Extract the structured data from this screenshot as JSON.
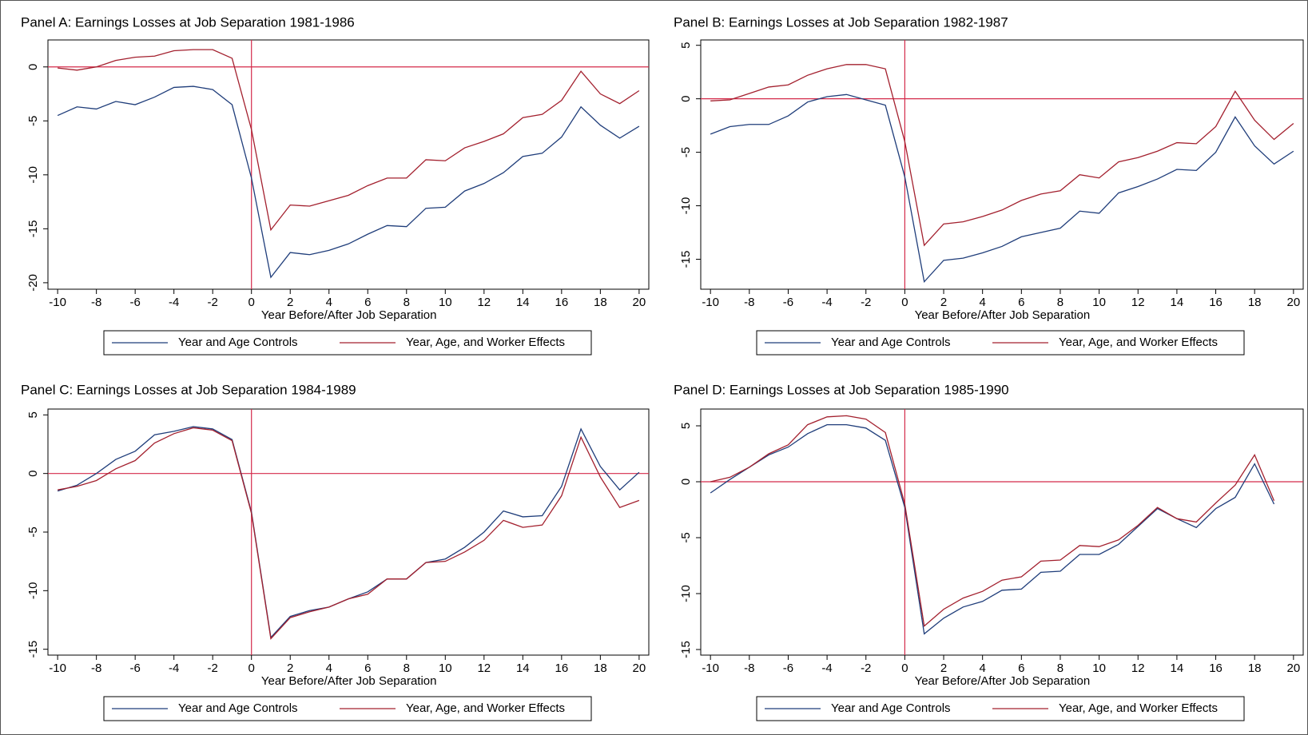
{
  "chart_data": [
    {
      "type": "line",
      "title": "Panel A: Earnings Losses at Job Separation 1981-1986",
      "x_label": "Year Before/After Job Separation",
      "x": [
        -10,
        -9,
        -8,
        -7,
        -6,
        -5,
        -4,
        -3,
        -2,
        -1,
        0,
        1,
        2,
        3,
        4,
        5,
        6,
        7,
        8,
        9,
        10,
        11,
        12,
        13,
        14,
        15,
        16,
        17,
        18,
        19,
        20
      ],
      "series": [
        {
          "name": "Year and Age Controls",
          "color": "#1f3d7a",
          "values": [
            -4.5,
            -3.7,
            -3.9,
            -3.2,
            -3.5,
            -2.8,
            -1.9,
            -1.8,
            -2.1,
            -3.5,
            -10.3,
            -19.5,
            -17.2,
            -17.4,
            -17.0,
            -16.4,
            -15.5,
            -14.7,
            -14.8,
            -13.1,
            -13.0,
            -11.5,
            -10.8,
            -9.8,
            -8.3,
            -8.0,
            -6.5,
            -3.7,
            -5.4,
            -6.6,
            -5.5
          ]
        },
        {
          "name": "Year, Age, and Worker Effects",
          "color": "#a3202e",
          "values": [
            -0.1,
            -0.3,
            0.0,
            0.6,
            0.9,
            1.0,
            1.5,
            1.6,
            1.6,
            0.8,
            -5.8,
            -15.1,
            -12.8,
            -12.9,
            -12.4,
            -11.9,
            -11.0,
            -10.3,
            -10.3,
            -8.6,
            -8.7,
            -7.5,
            -6.9,
            -6.2,
            -4.7,
            -4.4,
            -3.1,
            -0.4,
            -2.5,
            -3.4,
            -2.2
          ]
        }
      ],
      "xlim": [
        -10.5,
        20.5
      ],
      "xticks": [
        -10,
        -8,
        -6,
        -4,
        -2,
        0,
        2,
        4,
        6,
        8,
        10,
        12,
        14,
        16,
        18,
        20
      ],
      "ylim": [
        -20.6,
        2.5
      ],
      "yticks": [
        -20,
        -15,
        -10,
        -5,
        0
      ],
      "hline": 0,
      "vline": 0,
      "ref_color": "#d42a4a"
    },
    {
      "type": "line",
      "title": "Panel B: Earnings Losses at Job Separation 1982-1987",
      "x_label": "Year Before/After Job Separation",
      "x": [
        -10,
        -9,
        -8,
        -7,
        -6,
        -5,
        -4,
        -3,
        -2,
        -1,
        0,
        1,
        2,
        3,
        4,
        5,
        6,
        7,
        8,
        9,
        10,
        11,
        12,
        13,
        14,
        15,
        16,
        17,
        18,
        19,
        20
      ],
      "series": [
        {
          "name": "Year and Age Controls",
          "color": "#1f3d7a",
          "values": [
            -3.3,
            -2.6,
            -2.4,
            -2.4,
            -1.6,
            -0.3,
            0.2,
            0.4,
            -0.1,
            -0.6,
            -7.3,
            -17.1,
            -15.1,
            -14.9,
            -14.4,
            -13.8,
            -12.9,
            -12.5,
            -12.1,
            -10.5,
            -10.7,
            -8.8,
            -8.2,
            -7.5,
            -6.6,
            -6.7,
            -5.0,
            -1.7,
            -4.4,
            -6.1,
            -4.9
          ]
        },
        {
          "name": "Year, Age, and Worker Effects",
          "color": "#a3202e",
          "values": [
            -0.2,
            -0.1,
            0.5,
            1.1,
            1.3,
            2.2,
            2.8,
            3.2,
            3.2,
            2.8,
            -4.0,
            -13.7,
            -11.7,
            -11.5,
            -11.0,
            -10.4,
            -9.5,
            -8.9,
            -8.6,
            -7.1,
            -7.4,
            -5.9,
            -5.5,
            -4.9,
            -4.1,
            -4.2,
            -2.6,
            0.7,
            -2.0,
            -3.8,
            -2.3
          ]
        }
      ],
      "xlim": [
        -10.5,
        20.5
      ],
      "xticks": [
        -10,
        -8,
        -6,
        -4,
        -2,
        0,
        2,
        4,
        6,
        8,
        10,
        12,
        14,
        16,
        18,
        20
      ],
      "ylim": [
        -17.8,
        5.5
      ],
      "yticks": [
        -15,
        -10,
        -5,
        0,
        5
      ],
      "hline": 0,
      "vline": 0,
      "ref_color": "#d42a4a"
    },
    {
      "type": "line",
      "title": "Panel C: Earnings Losses at Job Separation 1984-1989",
      "x_label": "Year Before/After Job Separation",
      "x": [
        -10,
        -9,
        -8,
        -7,
        -6,
        -5,
        -4,
        -3,
        -2,
        -1,
        0,
        1,
        2,
        3,
        4,
        5,
        6,
        7,
        8,
        9,
        10,
        11,
        12,
        13,
        14,
        15,
        16,
        17,
        18,
        19,
        20
      ],
      "series": [
        {
          "name": "Year and Age Controls",
          "color": "#1f3d7a",
          "values": [
            -1.5,
            -1.0,
            0.0,
            1.2,
            1.9,
            3.3,
            3.6,
            4.0,
            3.8,
            2.9,
            -3.3,
            -14.0,
            -12.2,
            -11.7,
            -11.4,
            -10.7,
            -10.1,
            -9.0,
            -9.0,
            -7.6,
            -7.3,
            -6.3,
            -5.0,
            -3.2,
            -3.7,
            -3.6,
            -1.1,
            3.8,
            0.6,
            -1.4,
            0.1
          ]
        },
        {
          "name": "Year, Age, and Worker Effects",
          "color": "#a3202e",
          "values": [
            -1.4,
            -1.1,
            -0.6,
            0.4,
            1.1,
            2.6,
            3.4,
            3.9,
            3.7,
            2.8,
            -3.4,
            -14.1,
            -12.3,
            -11.8,
            -11.4,
            -10.7,
            -10.3,
            -9.0,
            -9.0,
            -7.6,
            -7.5,
            -6.7,
            -5.7,
            -4.0,
            -4.6,
            -4.4,
            -1.9,
            3.1,
            -0.3,
            -2.9,
            -2.3
          ]
        }
      ],
      "xlim": [
        -10.5,
        20.5
      ],
      "xticks": [
        -10,
        -8,
        -6,
        -4,
        -2,
        0,
        2,
        4,
        6,
        8,
        10,
        12,
        14,
        16,
        18,
        20
      ],
      "ylim": [
        -15.5,
        5.5
      ],
      "yticks": [
        -15,
        -10,
        -5,
        0,
        5
      ],
      "hline": 0,
      "vline": 0,
      "ref_color": "#d42a4a"
    },
    {
      "type": "line",
      "title": "Panel D: Earnings Losses at Job Separation 1985-1990",
      "x_label": "Year Before/After Job Separation",
      "x": [
        -10,
        -9,
        -8,
        -7,
        -6,
        -5,
        -4,
        -3,
        -2,
        -1,
        0,
        1,
        2,
        3,
        4,
        5,
        6,
        7,
        8,
        9,
        10,
        11,
        12,
        13,
        14,
        15,
        16,
        17,
        18,
        19
      ],
      "series": [
        {
          "name": "Year and Age Controls",
          "color": "#1f3d7a",
          "values": [
            -1.0,
            0.2,
            1.3,
            2.4,
            3.1,
            4.3,
            5.1,
            5.1,
            4.8,
            3.7,
            -2.3,
            -13.6,
            -12.2,
            -11.2,
            -10.7,
            -9.7,
            -9.6,
            -8.1,
            -8.0,
            -6.5,
            -6.5,
            -5.6,
            -4.0,
            -2.4,
            -3.3,
            -4.1,
            -2.4,
            -1.4,
            1.6,
            -2.0
          ]
        },
        {
          "name": "Year, Age, and Worker Effects",
          "color": "#a3202e",
          "values": [
            0.0,
            0.4,
            1.3,
            2.5,
            3.3,
            5.1,
            5.8,
            5.9,
            5.6,
            4.4,
            -2.0,
            -12.9,
            -11.4,
            -10.4,
            -9.8,
            -8.8,
            -8.5,
            -7.1,
            -7.0,
            -5.7,
            -5.8,
            -5.2,
            -3.9,
            -2.3,
            -3.3,
            -3.6,
            -1.9,
            -0.3,
            2.4,
            -1.7
          ]
        }
      ],
      "xlim": [
        -10.5,
        20.5
      ],
      "xticks": [
        -10,
        -8,
        -6,
        -4,
        -2,
        0,
        2,
        4,
        6,
        8,
        10,
        12,
        14,
        16,
        18,
        20
      ],
      "ylim": [
        -15.5,
        6.5
      ],
      "yticks": [
        -15,
        -10,
        -5,
        0,
        5
      ],
      "hline": 0,
      "vline": 0,
      "ref_color": "#d42a4a"
    }
  ]
}
